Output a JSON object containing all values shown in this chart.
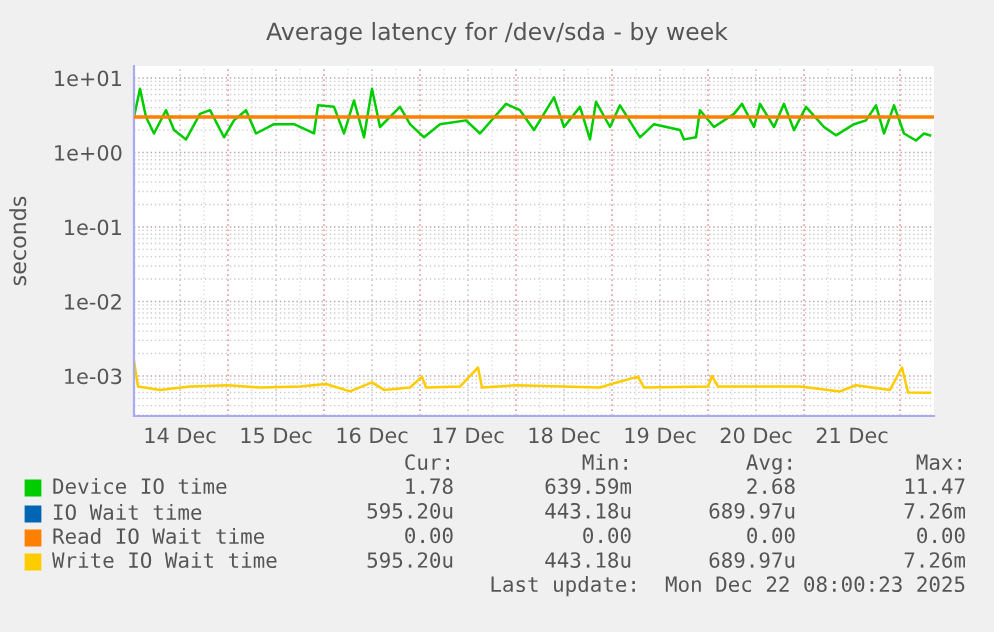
{
  "chart_data": {
    "type": "line",
    "title": "Average latency for /dev/sda - by week",
    "ylabel": "seconds",
    "log": "y",
    "ylim": [
      0.00029,
      14.5
    ],
    "yticks": [
      {
        "value": 10,
        "label": "1e+01"
      },
      {
        "value": 1,
        "label": "1e+00"
      },
      {
        "value": 0.1,
        "label": "1e-01"
      },
      {
        "value": 0.01,
        "label": "1e-02"
      },
      {
        "value": 0.001,
        "label": "1e-03"
      }
    ],
    "xlim": [
      "2025-12-14T00:30",
      "2025-12-22T08:30"
    ],
    "xticks": [
      {
        "value": "2025-12-14T12:00",
        "label": "14 Dec"
      },
      {
        "value": "2025-12-15T00:00",
        "label": null
      },
      {
        "value": "2025-12-15T12:00",
        "label": "15 Dec"
      },
      {
        "value": "2025-12-16T00:00",
        "label": null
      },
      {
        "value": "2025-12-16T12:00",
        "label": "16 Dec"
      },
      {
        "value": "2025-12-17T00:00",
        "label": null
      },
      {
        "value": "2025-12-17T12:00",
        "label": "17 Dec"
      },
      {
        "value": "2025-12-18T00:00",
        "label": null
      },
      {
        "value": "2025-12-18T12:00",
        "label": "18 Dec"
      },
      {
        "value": "2025-12-19T00:00",
        "label": null
      },
      {
        "value": "2025-12-19T12:00",
        "label": "19 Dec"
      },
      {
        "value": "2025-12-20T00:00",
        "label": null
      },
      {
        "value": "2025-12-20T12:00",
        "label": "20 Dec"
      },
      {
        "value": "2025-12-21T00:00",
        "label": null
      },
      {
        "value": "2025-12-21T12:00",
        "label": "21 Dec"
      },
      {
        "value": "2025-12-22T00:00",
        "label": null
      }
    ],
    "grid": true,
    "legend": "bottom",
    "ref_lines": [
      {
        "axis": "y",
        "value": 3.0,
        "color": "#ff8000"
      }
    ],
    "series": [
      {
        "name": "Device IO time",
        "color": "#00cc00",
        "x": [
          "2025-12-14T00:30",
          "2025-12-14T02:00",
          "2025-12-14T03:30",
          "2025-12-14T05:30",
          "2025-12-14T08:30",
          "2025-12-14T10:30",
          "2025-12-14T13:30",
          "2025-12-14T17:00",
          "2025-12-14T19:30",
          "2025-12-14T23:00",
          "2025-12-15T01:30",
          "2025-12-15T04:30",
          "2025-12-15T07:00",
          "2025-12-15T11:30",
          "2025-12-15T16:30",
          "2025-12-15T21:30",
          "2025-12-15T22:30",
          "2025-12-16T02:30",
          "2025-12-16T05:00",
          "2025-12-16T07:30",
          "2025-12-16T10:00",
          "2025-12-16T12:00",
          "2025-12-16T14:00",
          "2025-12-16T19:00",
          "2025-12-16T21:30",
          "2025-12-17T01:00",
          "2025-12-17T05:00",
          "2025-12-17T11:30",
          "2025-12-17T15:00",
          "2025-12-17T21:30",
          "2025-12-18T01:00",
          "2025-12-18T04:30",
          "2025-12-18T09:30",
          "2025-12-18T12:00",
          "2025-12-18T16:00",
          "2025-12-18T18:30",
          "2025-12-18T20:00",
          "2025-12-18T23:30",
          "2025-12-19T02:00",
          "2025-12-19T07:00",
          "2025-12-19T10:30",
          "2025-12-19T17:00",
          "2025-12-19T18:00",
          "2025-12-19T21:00",
          "2025-12-19T22:00",
          "2025-12-20T01:30",
          "2025-12-20T06:30",
          "2025-12-20T08:30",
          "2025-12-20T11:30",
          "2025-12-20T13:00",
          "2025-12-20T16:30",
          "2025-12-20T19:00",
          "2025-12-20T21:30",
          "2025-12-21T00:30",
          "2025-12-21T05:00",
          "2025-12-21T08:00",
          "2025-12-21T12:30",
          "2025-12-21T15:30",
          "2025-12-21T18:00",
          "2025-12-21T20:00",
          "2025-12-21T22:30",
          "2025-12-22T01:00",
          "2025-12-22T04:00",
          "2025-12-22T06:00",
          "2025-12-22T07:30"
        ],
        "values": [
          3.0,
          7.2,
          3.0,
          1.8,
          3.7,
          2.0,
          1.5,
          3.3,
          3.7,
          1.6,
          2.7,
          3.7,
          1.8,
          2.4,
          2.4,
          1.8,
          4.3,
          4.1,
          1.8,
          5.0,
          1.6,
          7.2,
          2.2,
          4.1,
          2.4,
          1.6,
          2.4,
          2.7,
          1.8,
          4.5,
          3.7,
          2.0,
          5.5,
          2.2,
          4.1,
          1.5,
          4.8,
          2.2,
          4.3,
          1.6,
          2.4,
          2.0,
          1.5,
          1.6,
          3.7,
          2.2,
          3.3,
          4.5,
          2.2,
          4.5,
          2.2,
          4.5,
          2.0,
          4.1,
          2.2,
          1.7,
          2.4,
          2.7,
          4.3,
          1.8,
          4.3,
          1.8,
          1.45,
          1.8,
          1.7
        ]
      },
      {
        "name": "IO Wait time",
        "color": "#0066b3"
      },
      {
        "name": "Read IO Wait time",
        "color": "#ff8000"
      },
      {
        "name": "Write IO Wait time",
        "color": "#ffcc00",
        "x": [
          "2025-12-14T00:30",
          "2025-12-14T01:30",
          "2025-12-14T07:00",
          "2025-12-14T14:30",
          "2025-12-15T00:00",
          "2025-12-15T08:00",
          "2025-12-15T18:00",
          "2025-12-16T00:30",
          "2025-12-16T06:30",
          "2025-12-16T12:00",
          "2025-12-16T15:00",
          "2025-12-16T21:30",
          "2025-12-17T00:30",
          "2025-12-17T01:30",
          "2025-12-17T10:00",
          "2025-12-17T14:30",
          "2025-12-17T15:30",
          "2025-12-18T00:00",
          "2025-12-18T21:00",
          "2025-12-19T00:30",
          "2025-12-19T06:30",
          "2025-12-19T08:00",
          "2025-12-20T00:00",
          "2025-12-20T01:00",
          "2025-12-20T02:30",
          "2025-12-20T23:00",
          "2025-12-21T09:00",
          "2025-12-21T13:00",
          "2025-12-21T21:30",
          "2025-12-22T00:30",
          "2025-12-22T02:00",
          "2025-12-22T07:30"
        ],
        "values": [
          0.0016,
          0.00072,
          0.00065,
          0.00072,
          0.00075,
          0.0007,
          0.00072,
          0.00078,
          0.00062,
          0.00082,
          0.00065,
          0.0007,
          0.00098,
          0.0007,
          0.00072,
          0.0013,
          0.0007,
          0.00075,
          0.0007,
          0.0008,
          0.00098,
          0.0007,
          0.00072,
          0.001,
          0.00072,
          0.00072,
          0.00062,
          0.00075,
          0.00065,
          0.0013,
          0.0006,
          0.000595
        ]
      }
    ],
    "annotations": [
      "Cur:",
      "Min:",
      "Avg:",
      "Max:",
      "1.78",
      "639.59m",
      "2.68",
      "11.47",
      "595.20u",
      "443.18u",
      "689.97u",
      "7.26m",
      "0.00",
      "0.00",
      "0.00",
      "0.00",
      "595.20u",
      "443.18u",
      "689.97u",
      "7.26m",
      "Last update:  Mon Dec 22 08:00:23 2025"
    ]
  }
}
